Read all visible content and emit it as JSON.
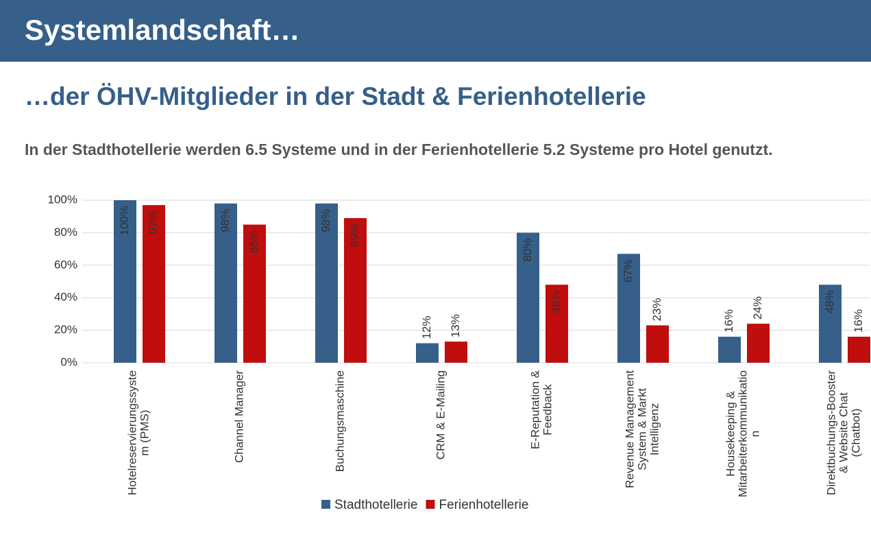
{
  "header": {
    "title": "Systemlandschaft…"
  },
  "subtitle": "…der ÖHV-Mitglieder in der Stadt & Ferienhotellerie",
  "summary": "In der Stadthotellerie werden 6.5 Systeme und in der Ferienhotellerie 5.2 Systeme pro Hotel genutzt.",
  "chart_data": {
    "type": "bar",
    "categories": [
      [
        "Hotelreservierungssyste",
        "m (PMS)"
      ],
      [
        "Channel Manager"
      ],
      [
        "Buchungsmaschine"
      ],
      [
        "CRM & E-Mailing"
      ],
      [
        "E-Reputation &",
        "Feedback"
      ],
      [
        "Revenue Management",
        "System & Markt",
        "Intelligenz"
      ],
      [
        "Housekeeping &",
        "Mitarbeiterkommunikatio",
        "n"
      ],
      [
        "Direktbuchungs-Booster",
        "& Website Chat",
        "(Chatbot)"
      ]
    ],
    "series": [
      {
        "name": "Stadthotellerie",
        "color": "#365f8a",
        "values": [
          100,
          98,
          98,
          12,
          80,
          67,
          16,
          48
        ],
        "value_labels": [
          "100%",
          "98%",
          "98%",
          "12%",
          "80%",
          "67%",
          "16%",
          "48%"
        ]
      },
      {
        "name": "Ferienhotellerie",
        "color": "#c00d0d",
        "values": [
          97,
          85,
          89,
          13,
          48,
          23,
          24,
          16
        ],
        "value_labels": [
          "97%",
          "85%",
          "89%",
          "13%",
          "48%",
          "23%",
          "24%",
          "16%"
        ]
      }
    ],
    "ylim": [
      0,
      100
    ],
    "yticks": [
      {
        "value": 0,
        "label": "0%"
      },
      {
        "value": 20,
        "label": "20%"
      },
      {
        "value": 40,
        "label": "40%"
      },
      {
        "value": 60,
        "label": "60%"
      },
      {
        "value": 80,
        "label": "80%"
      },
      {
        "value": 100,
        "label": "100%"
      }
    ],
    "grid": true,
    "legend": "bottom"
  }
}
